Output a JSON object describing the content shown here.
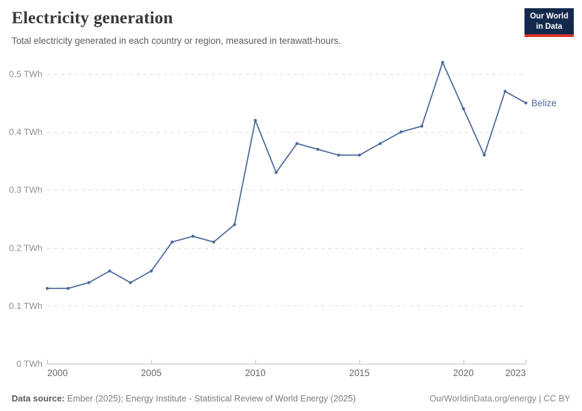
{
  "header": {
    "title": "Electricity generation",
    "subtitle": "Total electricity generated in each country or region, measured in terawatt-hours.",
    "logo_line1": "Our World",
    "logo_line2": "in Data"
  },
  "theme": {
    "series_color": "#4C6A9C",
    "logo_bg": "#12294B",
    "logo_accent": "#D8342C",
    "gridline_color": "#dcdcdc",
    "axis_color": "#bdbdbd",
    "y_label_color": "#8f8f8f",
    "x_label_color": "#666666"
  },
  "chart_data": {
    "type": "line",
    "title": "Electricity generation",
    "subtitle": "Total electricity generated in each country or region, measured in terawatt-hours.",
    "unit": "TWh",
    "grid": "horizontal-dashed",
    "legend_position": "end-of-line",
    "xlim": [
      2000,
      2023
    ],
    "ylim": [
      0,
      0.52
    ],
    "x": [
      2000,
      2001,
      2002,
      2003,
      2004,
      2005,
      2006,
      2007,
      2008,
      2009,
      2010,
      2011,
      2012,
      2013,
      2014,
      2015,
      2016,
      2017,
      2018,
      2019,
      2020,
      2021,
      2022,
      2023
    ],
    "series": [
      {
        "name": "Belize",
        "color": "#4C6A9C",
        "values": [
          0.13,
          0.13,
          0.14,
          0.16,
          0.14,
          0.16,
          0.21,
          0.22,
          0.21,
          0.24,
          0.42,
          0.33,
          0.38,
          0.37,
          0.36,
          0.36,
          0.38,
          0.4,
          0.41,
          0.52,
          0.44,
          0.36,
          0.47,
          0.45
        ]
      }
    ],
    "x_ticks": [
      2000,
      2005,
      2010,
      2015,
      2020,
      2023
    ],
    "x_tick_labels": [
      "2000",
      "2005",
      "2010",
      "2015",
      "2020",
      "2023"
    ],
    "y_ticks": [
      0,
      0.1,
      0.2,
      0.3,
      0.4,
      0.5
    ],
    "y_tick_labels": [
      "0 TWh",
      "0.1 TWh",
      "0.2 TWh",
      "0.3 TWh",
      "0.4 TWh",
      "0.5 TWh"
    ]
  },
  "footer": {
    "source_label": "Data source:",
    "source_text": "Ember (2025); Energy Institute - Statistical Review of World Energy (2025)",
    "credit": "OurWorldinData.org/energy | CC BY"
  }
}
